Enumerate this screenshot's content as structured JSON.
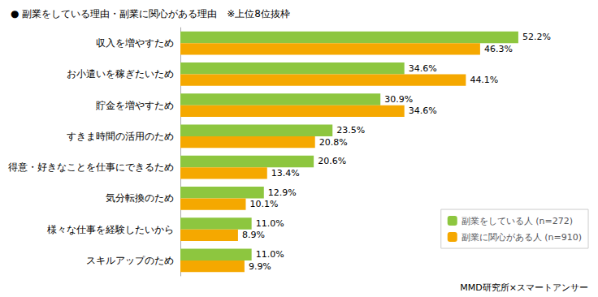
{
  "chart_data": {
    "type": "bar",
    "orientation": "horizontal",
    "title": "● 副業をしている理由・副業に関心がある理由　※上位8位抜枠",
    "categories": [
      "収入を増やすため",
      "お小遣いを稼ぎたいため",
      "貯金を増やすため",
      "すきま時間の活用のため",
      "得意・好きなことを仕事にできるため",
      "気分転換のため",
      "様々な仕事を経験したいから",
      "スキルアップのため"
    ],
    "series": [
      {
        "name": "副業をしている人 (n=272)",
        "color": "#8DC63F",
        "values": [
          52.2,
          34.6,
          30.9,
          23.5,
          20.6,
          12.9,
          11.0,
          11.0
        ],
        "value_labels": [
          "52.2%",
          "34.6%",
          "30.9%",
          "23.5%",
          "20.6%",
          "12.9%",
          "11.0%",
          "11.0%"
        ]
      },
      {
        "name": "副業に関心がある人 (n=910)",
        "color": "#F5A800",
        "values": [
          46.3,
          44.1,
          34.6,
          20.8,
          13.4,
          10.1,
          8.9,
          9.9
        ],
        "value_labels": [
          "46.3%",
          "44.1%",
          "34.6%",
          "20.8%",
          "13.4%",
          "10.1%",
          "8.9%",
          "9.9%"
        ]
      }
    ],
    "xlim": [
      0,
      62
    ],
    "tick_labels": "y",
    "grid": false,
    "legend": "lower right",
    "data_labels": true,
    "annotations": [
      "MMD研究所×スマートアンサー"
    ]
  }
}
